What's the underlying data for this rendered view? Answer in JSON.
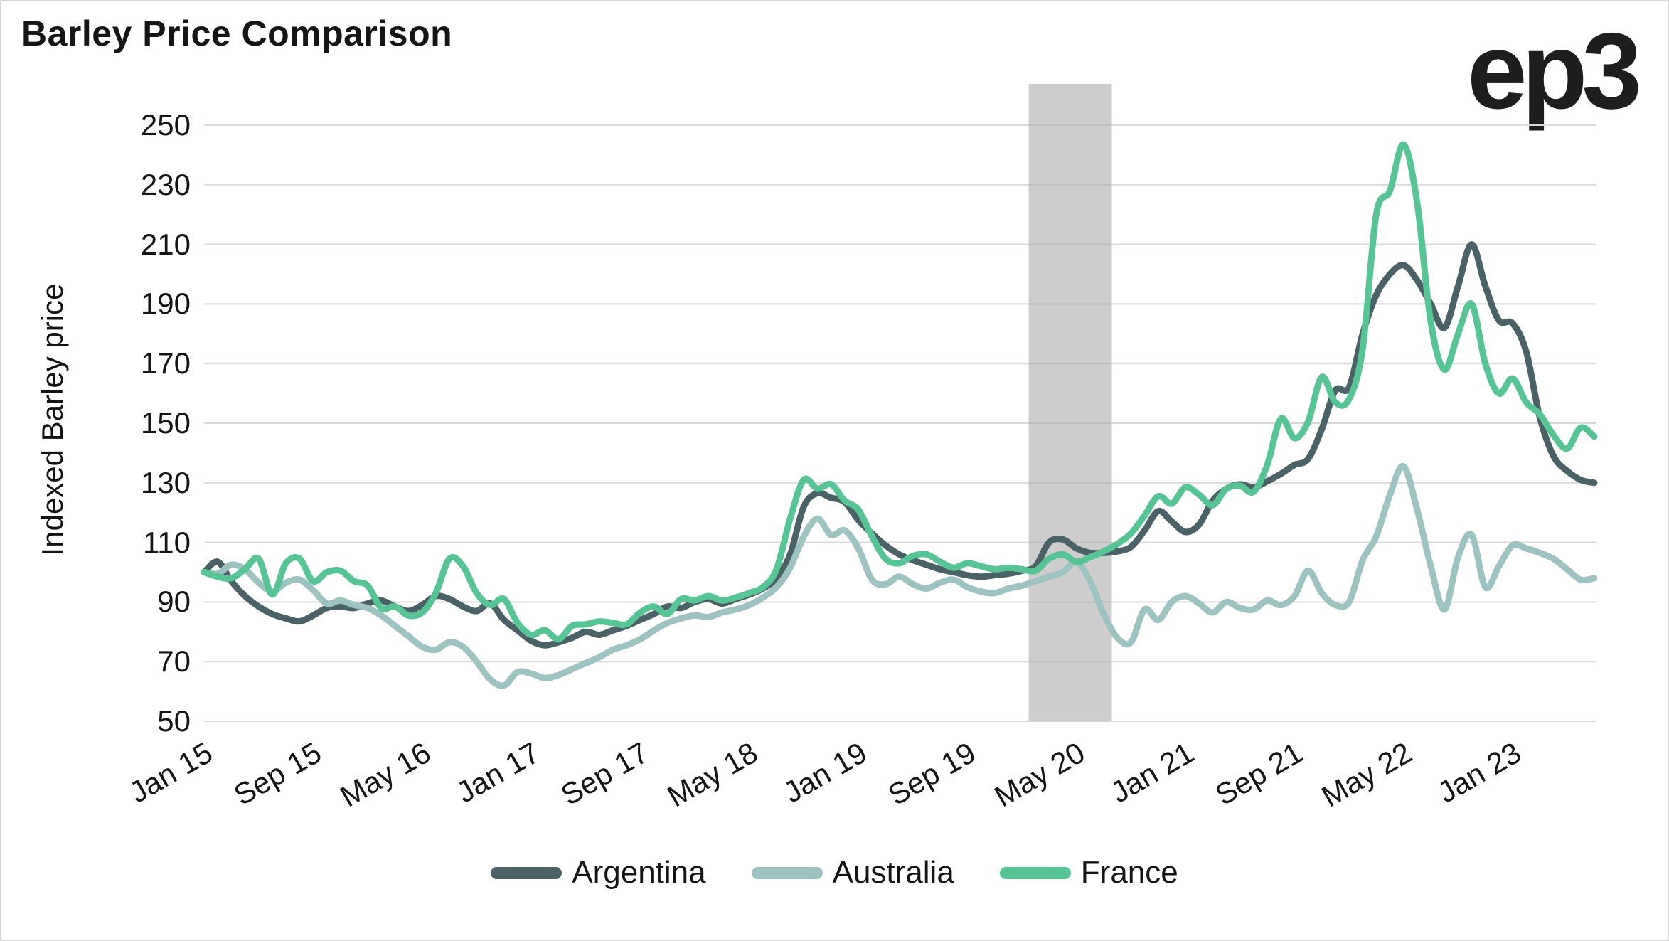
{
  "header": {
    "title": "Barley Price Comparison",
    "logo": "ep3"
  },
  "chart_data": {
    "type": "line",
    "title": "Barley Price Comparison",
    "xlabel": "",
    "ylabel": "Indexed Barley price",
    "ylim": [
      50,
      250
    ],
    "yticks": [
      250,
      230,
      210,
      190,
      170,
      150,
      130,
      110,
      90,
      70,
      50
    ],
    "x_unit": "month",
    "x_start": "Jan 2015",
    "x_end": "Jul 2023",
    "months_total": 103,
    "xtick_month_indexes": [
      0,
      8,
      16,
      24,
      32,
      40,
      48,
      56,
      64,
      72,
      80,
      88,
      96
    ],
    "xtick_labels": [
      "Jan 15",
      "Sep 15",
      "May 16",
      "Jan 17",
      "Sep 17",
      "May 18",
      "Jan 19",
      "Sep 19",
      "May 20",
      "Jan 21",
      "Sep 21",
      "May 22",
      "Jan 23"
    ],
    "grid": true,
    "legend_position": "bottom",
    "highlight_band": {
      "from_month": 60.5,
      "to_month": 66.6,
      "color": "rgba(172,172,172,0.6)"
    },
    "style": {
      "gridline_color": "#d9d9d9",
      "background": "#ffffff",
      "text_color": "#141414",
      "line_width": 9
    },
    "series": [
      {
        "name": "Argentina",
        "color": "#4a6165",
        "values": [
          100,
          103.5,
          97,
          92,
          88.5,
          86,
          84.5,
          83.5,
          85.5,
          88,
          88.5,
          88,
          89.5,
          90.5,
          88.5,
          87,
          89,
          92,
          91,
          88.5,
          87,
          89.5,
          84,
          80.5,
          77,
          75.5,
          76.5,
          78,
          80,
          79,
          80.5,
          82,
          84,
          86,
          88.5,
          88,
          90,
          91,
          89.5,
          91,
          92.5,
          94.5,
          98,
          106,
          122,
          126.5,
          125,
          123.5,
          117.5,
          113,
          109,
          106,
          104,
          102.5,
          101,
          100,
          99,
          98.5,
          99,
          99.5,
          100.5,
          102,
          110,
          111,
          108,
          106.5,
          106.5,
          107,
          108.5,
          114,
          120.5,
          117,
          113.5,
          116,
          124,
          128,
          129.5,
          128.5,
          130.5,
          133,
          136,
          138,
          148,
          161,
          162,
          180,
          193,
          200,
          203,
          198,
          190,
          182,
          196,
          210,
          196,
          184.5,
          183.5,
          174,
          152,
          139,
          134,
          131,
          130
        ]
      },
      {
        "name": "Australia",
        "color": "#9dc3c1",
        "values": [
          100,
          99.5,
          102.5,
          101,
          96.5,
          93.5,
          96.5,
          97.5,
          94,
          89.5,
          90.5,
          89,
          88,
          85.5,
          82,
          78.5,
          75,
          74,
          76.5,
          75,
          70,
          64,
          62,
          66.5,
          66,
          64.5,
          65.5,
          67.5,
          69.5,
          71.5,
          74,
          75.5,
          77.5,
          80.5,
          83,
          84.5,
          85.5,
          85,
          86.5,
          87.5,
          89,
          91.5,
          95,
          101.5,
          112,
          118,
          112.5,
          114,
          108,
          97.5,
          96,
          98.5,
          96,
          94.5,
          96.5,
          97.5,
          95,
          93.5,
          93,
          94.5,
          95.5,
          97,
          98.5,
          100,
          103.5,
          97,
          86,
          78,
          76.5,
          87.5,
          84,
          90,
          92,
          89.5,
          86.5,
          90,
          88,
          87.5,
          90.5,
          89,
          92,
          100.5,
          93,
          89,
          90,
          104,
          112,
          126,
          135.5,
          121,
          102,
          87.5,
          105,
          112.5,
          95,
          102,
          109,
          108,
          106.5,
          104.5,
          101,
          97.5,
          98
        ]
      },
      {
        "name": "France",
        "color": "#57c495",
        "values": [
          100,
          98.5,
          98,
          101,
          104.5,
          92.5,
          103,
          104.5,
          97,
          100,
          100.5,
          97,
          95.5,
          88,
          88.5,
          85.5,
          86.5,
          93,
          104.5,
          102,
          93,
          89,
          91,
          83,
          79,
          80.5,
          77.5,
          82,
          82.5,
          83.5,
          83,
          82.5,
          86.5,
          88.5,
          86,
          91,
          90.5,
          92,
          90.5,
          91.5,
          93,
          95,
          101,
          118,
          131,
          128,
          129.5,
          124,
          121,
          112,
          104.5,
          103,
          105.5,
          106,
          103.5,
          101.5,
          103,
          102,
          101,
          101.5,
          101,
          100.5,
          104.5,
          106,
          103.5,
          105,
          107,
          109.5,
          113,
          119,
          125.5,
          123,
          128.5,
          126,
          122.5,
          128,
          129,
          127,
          136,
          151.5,
          145,
          150.5,
          165.5,
          157,
          158,
          175,
          220,
          228,
          243.5,
          224,
          184,
          168,
          180,
          190,
          170,
          160,
          165,
          157,
          153,
          146,
          141.5,
          148.5,
          145.5
        ]
      }
    ]
  }
}
